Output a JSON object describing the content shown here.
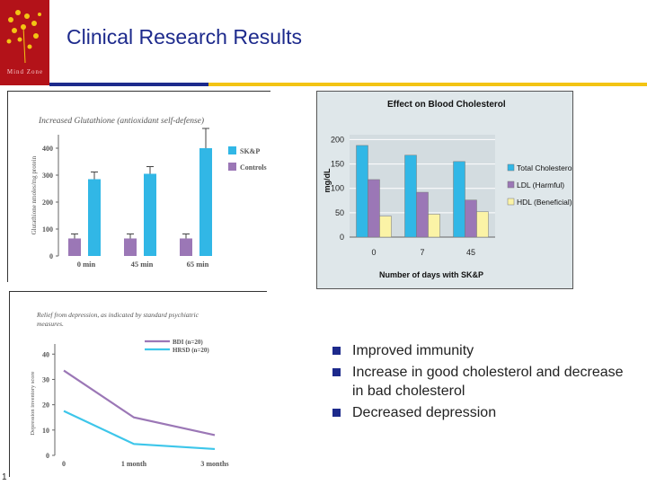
{
  "header": {
    "title": "Clinical Research Results",
    "logo_text": "Mind Zone"
  },
  "colors": {
    "brand_red": "#b31219",
    "navy": "#1d2a8c",
    "yellow": "#f3c413",
    "cyan": "#31b7e6",
    "purple": "#9b77b6",
    "pale_yellow": "#fbf3a6",
    "cyan_line": "#3dc6ea"
  },
  "bullets": [
    "Improved immunity",
    "Increase in good cholesterol and decrease in bad cholesterol",
    "Decreased depression"
  ],
  "page_number": "1",
  "chart_data": [
    {
      "type": "bar",
      "title": "Increased Glutathione (antioxidant self-defense)",
      "ylabel": "Glutathione nmoles/mg protein",
      "categories": [
        "0 min",
        "45 min",
        "65 min"
      ],
      "yticks": [
        0,
        100,
        200,
        300,
        400
      ],
      "ylim": [
        0,
        450
      ],
      "series": [
        {
          "name": "SK&P",
          "values": [
            285,
            305,
            400
          ],
          "color": "#31b7e6"
        },
        {
          "name": "Controls",
          "values": [
            65,
            65,
            65
          ],
          "color": "#9b77b6"
        }
      ],
      "legend": "right",
      "error_bars": true
    },
    {
      "type": "bar",
      "title": "Effect on Blood Cholesterol",
      "xlabel": "Number of days with SK&P",
      "ylabel": "mg/dL",
      "categories": [
        "0",
        "7",
        "45"
      ],
      "yticks": [
        0,
        50,
        100,
        150,
        200
      ],
      "ylim": [
        0,
        210
      ],
      "series": [
        {
          "name": "Total Cholesterol",
          "values": [
            188,
            168,
            155
          ],
          "color": "#31b7e6"
        },
        {
          "name": "LDL (Harmful)",
          "values": [
            118,
            92,
            76
          ],
          "color": "#9b77b6"
        },
        {
          "name": "HDL (Beneficial)",
          "values": [
            43,
            47,
            52
          ],
          "color": "#fbf3a6"
        }
      ],
      "legend": "right",
      "grid": true
    },
    {
      "type": "line",
      "title": "Relief from depression, as indicated by standard psychiatric measures.",
      "ylabel": "Depression inventory score",
      "categories": [
        "0",
        "1 month",
        "3 months"
      ],
      "yticks": [
        0,
        10,
        20,
        30,
        40
      ],
      "ylim": [
        0,
        44
      ],
      "series": [
        {
          "name": "BDI (n=20)",
          "values": [
            33.5,
            15,
            8
          ],
          "color": "#9b77b6"
        },
        {
          "name": "HRSD (n=20)",
          "values": [
            17.5,
            4.5,
            2.5
          ],
          "color": "#3dc6ea"
        }
      ],
      "legend": "top-right"
    }
  ]
}
